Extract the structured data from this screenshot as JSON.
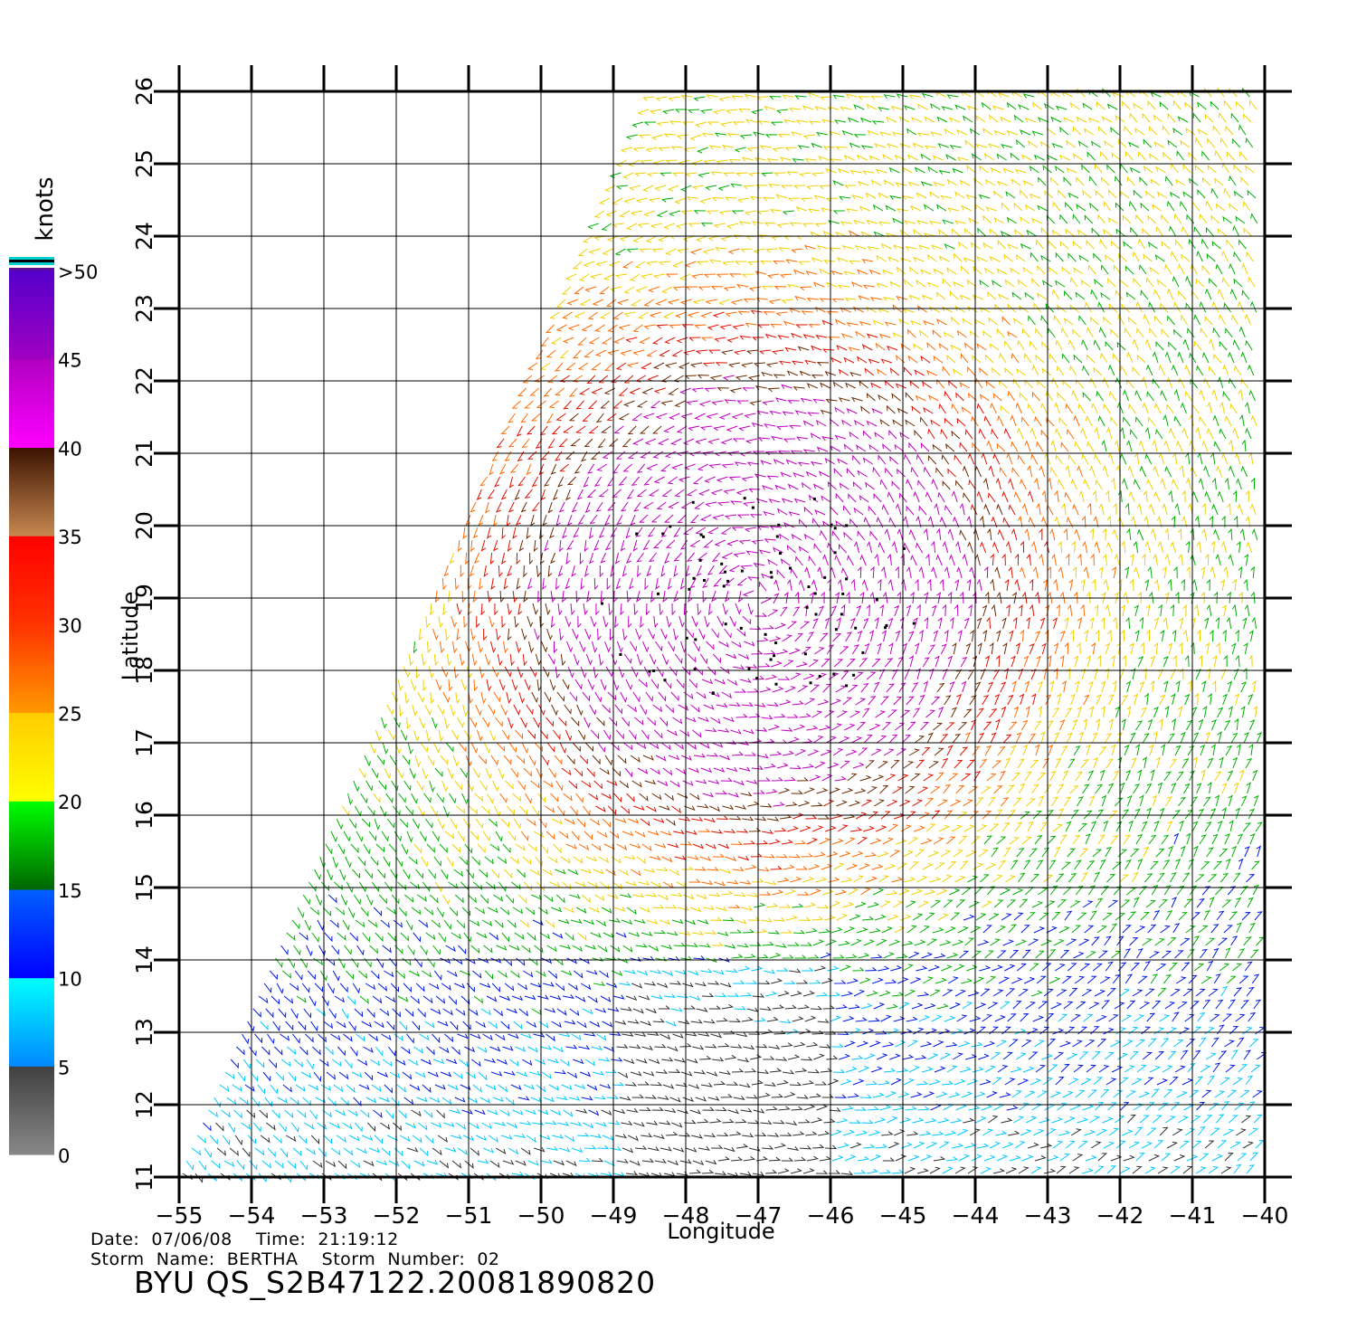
{
  "map": {
    "xlabel": "Longitude",
    "ylabel": "Latitude",
    "lon_range": [
      -55,
      -40
    ],
    "lat_range": [
      11,
      26
    ],
    "lon_ticks": [
      "−55",
      "−54",
      "−53",
      "−52",
      "−51",
      "−50",
      "−49",
      "−48",
      "−47",
      "−46",
      "−45",
      "−44",
      "−43",
      "−42",
      "−41",
      "−40"
    ],
    "lat_ticks": [
      "11",
      "12",
      "13",
      "14",
      "15",
      "16",
      "17",
      "18",
      "19",
      "20",
      "21",
      "22",
      "23",
      "24",
      "25",
      "26"
    ],
    "grid": true,
    "storm_center": {
      "lon": -47.0,
      "lat": 19.0
    }
  },
  "colorbar": {
    "unit": "knots",
    "labels": [
      "0",
      "5",
      "10",
      "15",
      "20",
      "25",
      "30",
      "35",
      "40",
      "45",
      ">50"
    ],
    "bands": [
      {
        "from": 0,
        "to": 5,
        "top": "#404040",
        "bottom": "#888888"
      },
      {
        "from": 5,
        "to": 10,
        "top": "#00ffff",
        "bottom": "#0088ff"
      },
      {
        "from": 10,
        "to": 15,
        "top": "#0060ff",
        "bottom": "#0000ff"
      },
      {
        "from": 15,
        "to": 20,
        "top": "#00ff00",
        "bottom": "#006600"
      },
      {
        "from": 20,
        "to": 25,
        "top": "#ffcc00",
        "bottom": "#ffff00"
      },
      {
        "from": 25,
        "to": 30,
        "top": "#ff3300",
        "bottom": "#ff9900"
      },
      {
        "from": 30,
        "to": 35,
        "top": "#ff0000",
        "bottom": "#ff3300"
      },
      {
        "from": 35,
        "to": 40,
        "top": "#3a1200",
        "bottom": "#c88850"
      },
      {
        "from": 40,
        "to": 45,
        "top": "#b000c0",
        "bottom": "#ff00ff"
      },
      {
        "from": 45,
        "to": 50,
        "top": "#5500cc",
        "bottom": "#a000c0"
      }
    ]
  },
  "footer": {
    "date_line": "Date:  07/06/08    Time:  21:19:12",
    "storm_line": "Storm  Name:  BERTHA    Storm  Number:  02",
    "product": "BYU  QS_S2B47122.20081890820"
  }
}
